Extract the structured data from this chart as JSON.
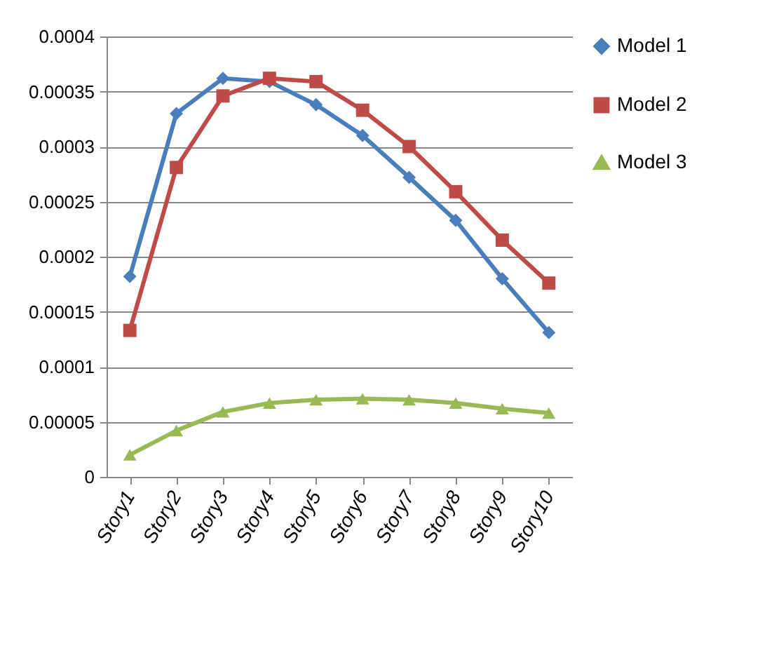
{
  "chart_data": {
    "type": "line",
    "categories": [
      "Story1",
      "Story2",
      "Story3",
      "Story4",
      "Story5",
      "Story6",
      "Story7",
      "Story8",
      "Story9",
      "Story10"
    ],
    "series": [
      {
        "name": "Model 1",
        "color": "#4a7ebb",
        "marker": "diamond",
        "values": [
          0.000182,
          0.00033,
          0.000362,
          0.000359,
          0.000338,
          0.00031,
          0.000272,
          0.000233,
          0.00018,
          0.000131
        ]
      },
      {
        "name": "Model 2",
        "color": "#be4b48",
        "marker": "square",
        "values": [
          0.000133,
          0.000281,
          0.000346,
          0.000362,
          0.000359,
          0.000333,
          0.0003,
          0.000259,
          0.000215,
          0.000176
        ]
      },
      {
        "name": "Model 3",
        "color": "#98b954",
        "marker": "triangle",
        "values": [
          2e-05,
          4.2e-05,
          5.9e-05,
          6.7e-05,
          7e-05,
          7.1e-05,
          7e-05,
          6.7e-05,
          6.2e-05,
          5.8e-05
        ]
      }
    ],
    "ylim": [
      0,
      0.0004
    ],
    "yticks": [
      0,
      {
        "value": 5e-05,
        "label": "0.00005"
      },
      0.0001,
      0.00015,
      0.0002,
      0.00025,
      0.0003,
      0.00035,
      0.0004
    ],
    "grid": "y",
    "legend": "right",
    "line_style": "solid"
  }
}
